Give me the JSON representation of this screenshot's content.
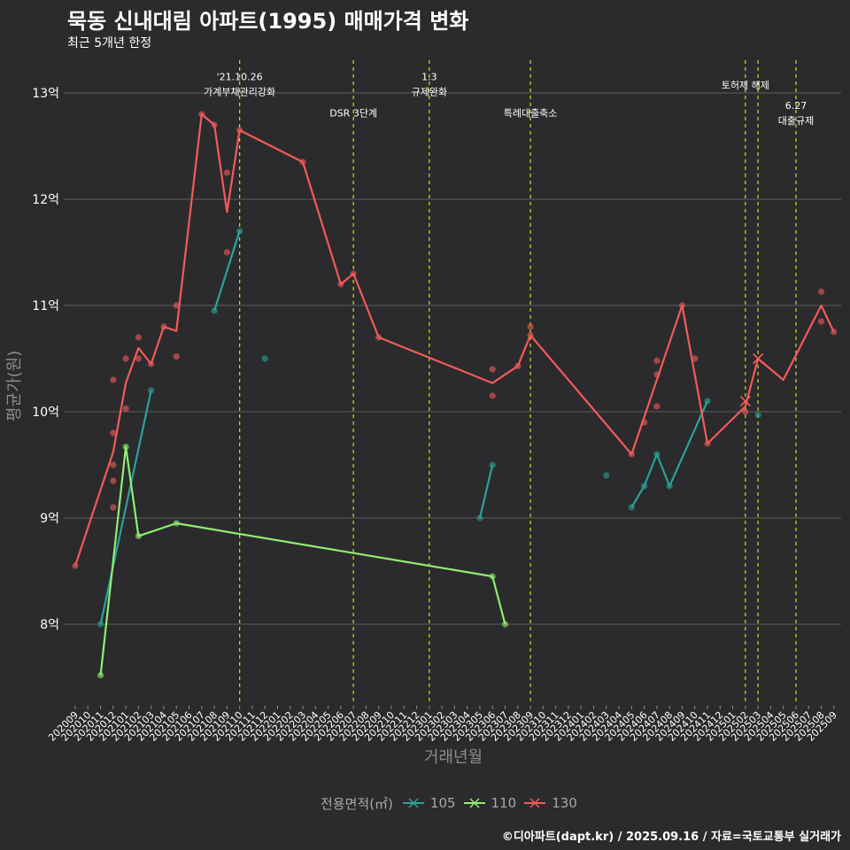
{
  "chart_data": {
    "type": "line",
    "title": "묵동 신내대림 아파트(1995) 매매가격 변화",
    "subtitle": "최근 5개년 한정",
    "xlabel": "거래년월",
    "ylabel": "평균가(원)",
    "ylim": [
      7.25,
      13.25
    ],
    "yticks": [
      8,
      9,
      10,
      11,
      12,
      13
    ],
    "ytick_labels": [
      "8억",
      "9억",
      "10억",
      "11억",
      "12억",
      "13억"
    ],
    "start_month": "202009",
    "month_count": 61,
    "categories": [
      "202009",
      "202010",
      "202011",
      "202012",
      "202101",
      "202102",
      "202103",
      "202104",
      "202105",
      "202106",
      "202107",
      "202108",
      "202109",
      "202110",
      "202111",
      "202112",
      "202201",
      "202202",
      "202203",
      "202204",
      "202205",
      "202206",
      "202207",
      "202208",
      "202209",
      "202210",
      "202211",
      "202212",
      "202301",
      "202302",
      "202303",
      "202304",
      "202305",
      "202306",
      "202307",
      "202308",
      "202309",
      "202310",
      "202311",
      "202312",
      "202401",
      "202402",
      "202403",
      "202404",
      "202405",
      "202406",
      "202407",
      "202408",
      "202409",
      "202410",
      "202411",
      "202412",
      "202501",
      "202502",
      "202503",
      "202504",
      "202505",
      "202506",
      "202507",
      "202508",
      "202509"
    ],
    "legend_title": "전용면적(㎡)",
    "series": [
      {
        "name": "105",
        "color": "#2aa198",
        "line": [
          [
            2,
            8.0
          ],
          [
            6,
            10.2
          ],
          [
            null,
            null
          ],
          [
            11,
            10.95
          ],
          [
            13,
            11.7
          ],
          [
            null,
            null
          ],
          [
            32,
            9.0
          ],
          [
            33,
            9.5
          ],
          [
            null,
            null
          ],
          [
            44,
            9.1
          ],
          [
            45,
            9.3
          ],
          [
            46,
            9.6
          ],
          [
            47,
            9.3
          ],
          [
            50,
            10.1
          ]
        ],
        "points": [
          [
            2,
            8.0
          ],
          [
            6,
            10.2
          ],
          [
            11,
            10.95
          ],
          [
            13,
            11.7
          ],
          [
            15,
            10.5
          ],
          [
            32,
            9.0
          ],
          [
            33,
            9.5
          ],
          [
            42,
            9.4
          ],
          [
            44,
            9.1
          ],
          [
            45,
            9.3
          ],
          [
            46,
            9.6
          ],
          [
            47,
            9.3
          ],
          [
            50,
            10.1
          ],
          [
            54,
            9.97
          ]
        ]
      },
      {
        "name": "110",
        "color": "#90ee70",
        "line": [
          [
            2,
            7.52
          ],
          [
            4,
            9.67
          ],
          [
            5,
            8.83
          ],
          [
            8,
            8.95
          ],
          [
            33,
            8.45
          ],
          [
            34,
            8.0
          ]
        ],
        "points": [
          [
            2,
            7.52
          ],
          [
            4,
            9.67
          ],
          [
            5,
            8.83
          ],
          [
            8,
            8.95
          ],
          [
            33,
            8.45
          ],
          [
            34,
            8.0
          ]
        ]
      },
      {
        "name": "130",
        "color": "#f25a5a",
        "line": [
          [
            0,
            8.55
          ],
          [
            3,
            9.62
          ],
          [
            4,
            10.27
          ],
          [
            5,
            10.6
          ],
          [
            6,
            10.45
          ],
          [
            7,
            10.8
          ],
          [
            8,
            10.76
          ],
          [
            10,
            12.8
          ],
          [
            11,
            12.7
          ],
          [
            12,
            11.88
          ],
          [
            13,
            12.65
          ],
          [
            18,
            12.35
          ],
          [
            21,
            11.2
          ],
          [
            22,
            11.3
          ],
          [
            24,
            10.7
          ],
          [
            33,
            10.27
          ],
          [
            35,
            10.43
          ],
          [
            36,
            10.72
          ],
          [
            44,
            9.6
          ],
          [
            48,
            11.0
          ],
          [
            50,
            9.7
          ],
          [
            53,
            10.05
          ],
          [
            54,
            10.5
          ],
          [
            56,
            10.3
          ],
          [
            59,
            11.0
          ],
          [
            60,
            10.75
          ]
        ],
        "points": [
          [
            0,
            8.55
          ],
          [
            3,
            9.1
          ],
          [
            3,
            9.35
          ],
          [
            3,
            9.5
          ],
          [
            3,
            9.8
          ],
          [
            3,
            10.3
          ],
          [
            4,
            10.03
          ],
          [
            4,
            10.5
          ],
          [
            5,
            10.5
          ],
          [
            5,
            10.7
          ],
          [
            6,
            10.45
          ],
          [
            7,
            10.8
          ],
          [
            8,
            10.52
          ],
          [
            8,
            11.0
          ],
          [
            10,
            12.8
          ],
          [
            11,
            12.7
          ],
          [
            12,
            11.5
          ],
          [
            12,
            12.25
          ],
          [
            13,
            12.65
          ],
          [
            18,
            12.35
          ],
          [
            21,
            11.2
          ],
          [
            22,
            11.3
          ],
          [
            24,
            10.7
          ],
          [
            33,
            10.15
          ],
          [
            33,
            10.4
          ],
          [
            35,
            10.43
          ],
          [
            36,
            10.72
          ],
          [
            36,
            10.8
          ],
          [
            44,
            9.6
          ],
          [
            45,
            9.9
          ],
          [
            46,
            10.05
          ],
          [
            46,
            10.35
          ],
          [
            46,
            10.48
          ],
          [
            48,
            11.0
          ],
          [
            49,
            10.5
          ],
          [
            50,
            9.7
          ],
          [
            53,
            10.0
          ],
          [
            59,
            11.13
          ],
          [
            59,
            10.85
          ],
          [
            60,
            10.75
          ]
        ],
        "x_markers": [
          [
            53,
            10.1
          ],
          [
            54,
            10.5
          ]
        ]
      }
    ],
    "annotations": [
      {
        "month": 13,
        "lines": [
          "'21.10.26",
          "가계부채관리강화"
        ],
        "y": 13.12
      },
      {
        "month": 22,
        "lines": [
          "DSR 3단계"
        ],
        "y": 12.78
      },
      {
        "month": 28,
        "lines": [
          "1.3",
          "규제완화"
        ],
        "y": 13.12
      },
      {
        "month": 36,
        "lines": [
          "특례대출축소"
        ],
        "y": 12.78
      },
      {
        "month": 53,
        "lines": [
          "토허제 해제"
        ],
        "y": 13.04
      },
      {
        "month": 54,
        "lines": [],
        "y": 13.04
      },
      {
        "month": 57,
        "lines": [
          "6.27",
          "대출규제"
        ],
        "y": 12.85
      }
    ]
  },
  "legend": {
    "title": "전용면적(㎡)",
    "items": [
      {
        "label": "105",
        "color": "#2aa198"
      },
      {
        "label": "110",
        "color": "#90ee70"
      },
      {
        "label": "130",
        "color": "#f25a5a"
      }
    ]
  },
  "caption": "©디아파트(dapt.kr) / 2025.09.16 / 자료=국토교통부 실거래가"
}
